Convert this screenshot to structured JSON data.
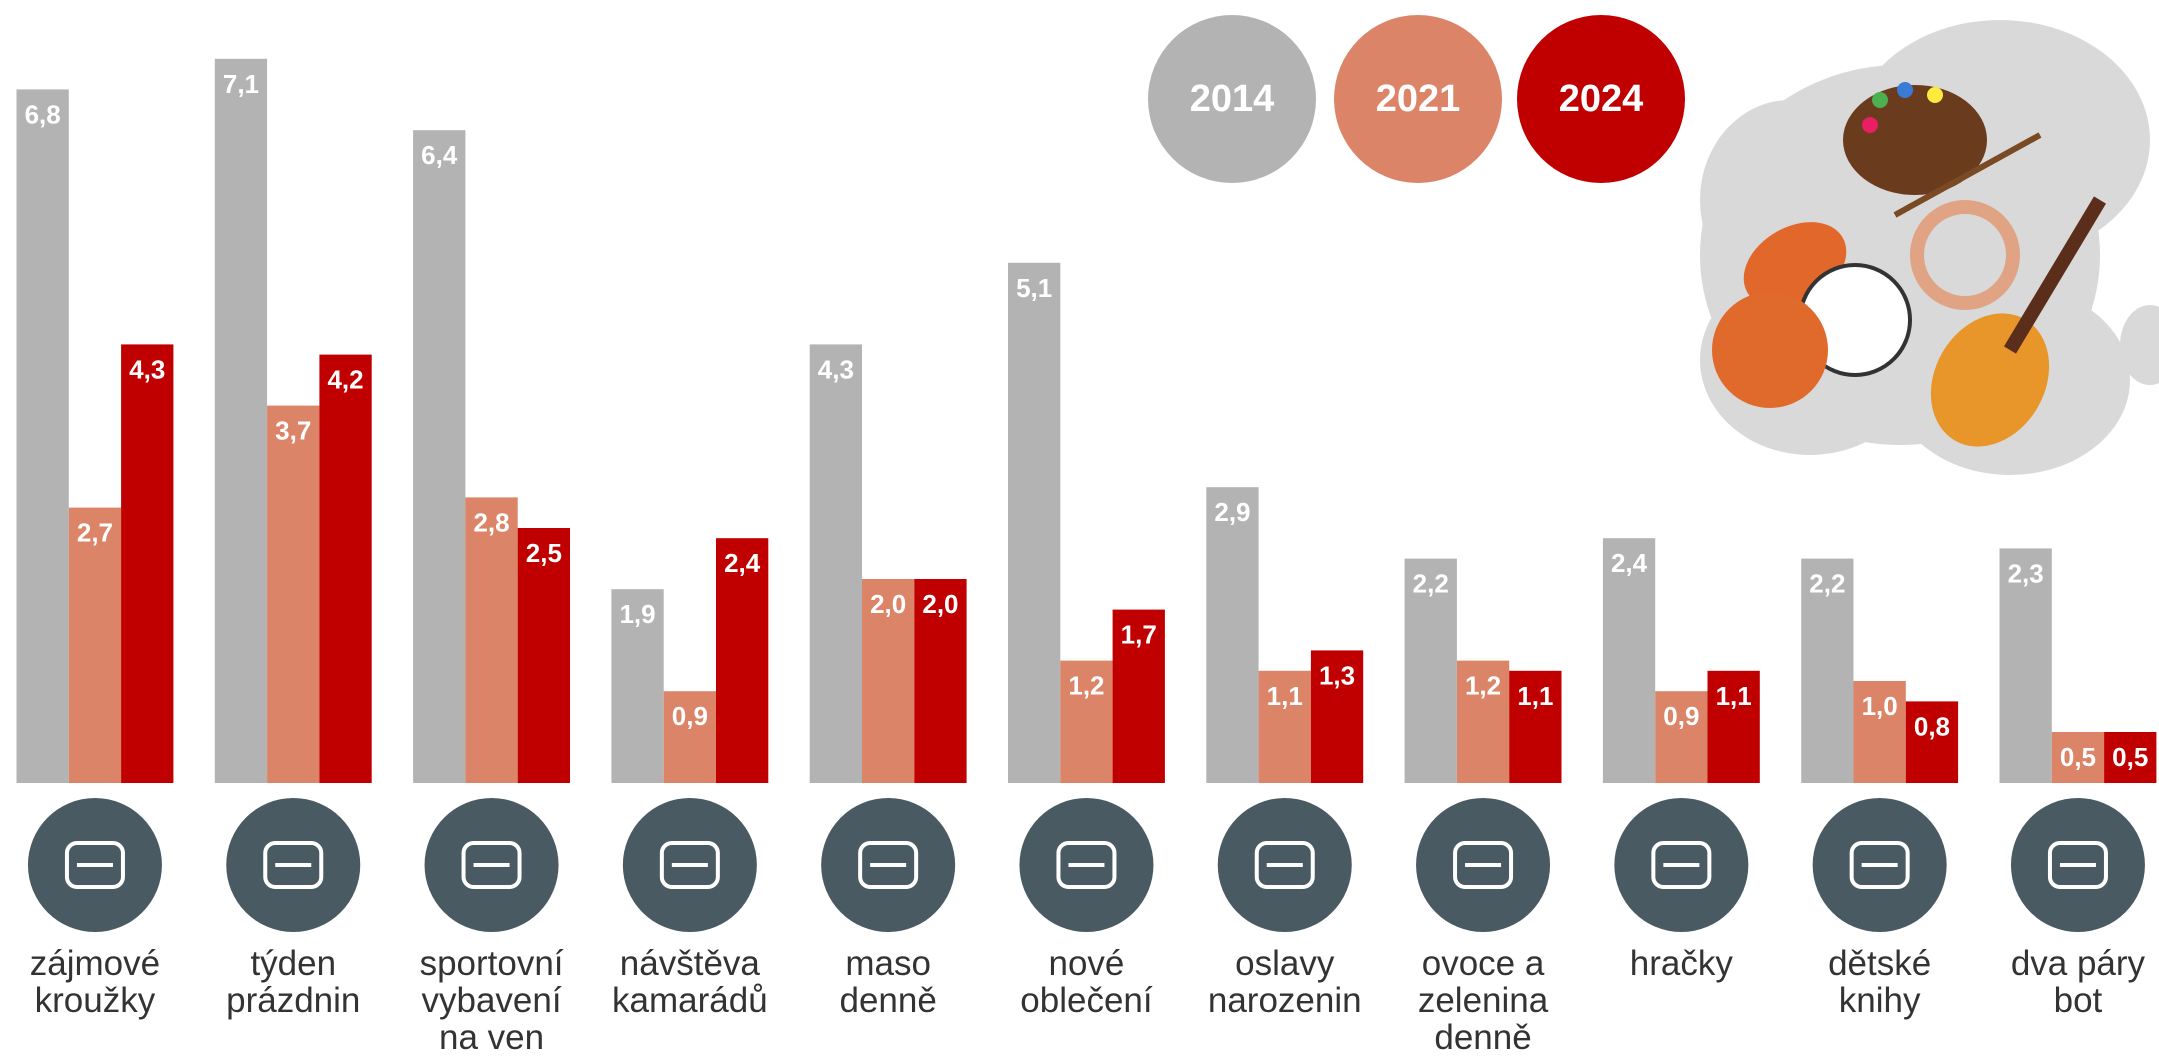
{
  "chart_data": {
    "type": "bar",
    "categories": [
      "zájmové kroužky",
      "týden prázdnin",
      "sportovní vybavení na ven",
      "návštěva kamarádů",
      "maso denně",
      "nové oblečení",
      "oslavy narozenin",
      "ovoce a zelenina denně",
      "hračky",
      "dětské knihy",
      "dva páry bot"
    ],
    "series": [
      {
        "name": "2014",
        "color": "#b3b3b3",
        "values": [
          6.8,
          7.1,
          6.4,
          1.9,
          4.3,
          5.1,
          2.9,
          2.2,
          2.4,
          2.2,
          2.3
        ],
        "value_labels": [
          "6,8",
          "7,1",
          "6,4",
          "1,9",
          "4,3",
          "5,1",
          "2,9",
          "2,2",
          "2,4",
          "2,2",
          "2,3"
        ]
      },
      {
        "name": "2021",
        "color": "#dc8467",
        "values": [
          2.7,
          3.7,
          2.8,
          0.9,
          2.0,
          1.2,
          1.1,
          1.2,
          0.9,
          1.0,
          0.5
        ],
        "value_labels": [
          "2,7",
          "3,7",
          "2,8",
          "0,9",
          "2,0",
          "1,2",
          "1,1",
          "1,2",
          "0,9",
          "1,0",
          "0,5"
        ]
      },
      {
        "name": "2024",
        "color": "#c00000",
        "values": [
          4.3,
          4.2,
          2.5,
          2.4,
          2.0,
          1.7,
          1.3,
          1.1,
          1.1,
          0.8,
          0.5
        ],
        "value_labels": [
          "4,3",
          "4,2",
          "2,5",
          "2,4",
          "2,0",
          "1,7",
          "1,3",
          "1,1",
          "1,1",
          "0,8",
          "0,5"
        ]
      }
    ],
    "ylim": [
      0,
      7.5
    ]
  }
}
